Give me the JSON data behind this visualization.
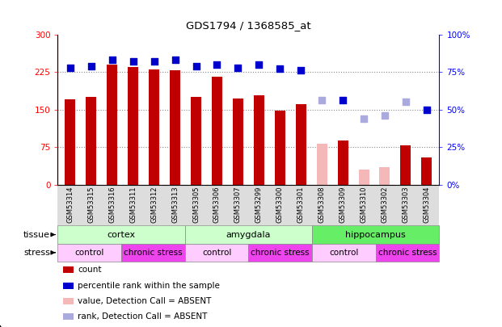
{
  "title": "GDS1794 / 1368585_at",
  "samples": [
    "GSM53314",
    "GSM53315",
    "GSM53316",
    "GSM53311",
    "GSM53312",
    "GSM53313",
    "GSM53305",
    "GSM53306",
    "GSM53307",
    "GSM53299",
    "GSM53300",
    "GSM53301",
    "GSM53308",
    "GSM53309",
    "GSM53310",
    "GSM53302",
    "GSM53303",
    "GSM53304"
  ],
  "counts": [
    170,
    175,
    240,
    235,
    230,
    228,
    175,
    215,
    172,
    178,
    148,
    160,
    null,
    88,
    null,
    null,
    78,
    55
  ],
  "counts_absent": [
    null,
    null,
    null,
    null,
    null,
    null,
    null,
    null,
    null,
    null,
    null,
    null,
    82,
    null,
    30,
    35,
    null,
    null
  ],
  "percentile_ranks": [
    78,
    79,
    83,
    82,
    82,
    83,
    79,
    80,
    78,
    80,
    77,
    76,
    null,
    56,
    null,
    null,
    null,
    50
  ],
  "percentile_ranks_absent": [
    null,
    null,
    null,
    null,
    null,
    null,
    null,
    null,
    null,
    null,
    null,
    null,
    56,
    null,
    44,
    46,
    55,
    null
  ],
  "bar_color_normal": "#c00000",
  "bar_color_absent": "#f4b8b8",
  "dot_color_normal": "#0000cc",
  "dot_color_absent": "#aaaadd",
  "ylim_left": [
    0,
    300
  ],
  "ylim_right": [
    0,
    100
  ],
  "yticks_left": [
    0,
    75,
    150,
    225,
    300
  ],
  "yticks_right": [
    0,
    25,
    50,
    75,
    100
  ],
  "ytick_labels_right": [
    "0%",
    "25%",
    "50%",
    "75%",
    "100%"
  ],
  "hlines": [
    75,
    150,
    225
  ],
  "tissue_groups": [
    {
      "label": "cortex",
      "start": 0,
      "end": 5,
      "color": "#ccffcc"
    },
    {
      "label": "amygdala",
      "start": 6,
      "end": 11,
      "color": "#ccffcc"
    },
    {
      "label": "hippocampus",
      "start": 12,
      "end": 17,
      "color": "#66ee66"
    }
  ],
  "stress_groups": [
    {
      "label": "control",
      "start": 0,
      "end": 2,
      "color": "#ffccff"
    },
    {
      "label": "chronic stress",
      "start": 3,
      "end": 5,
      "color": "#ee44ee"
    },
    {
      "label": "control",
      "start": 6,
      "end": 8,
      "color": "#ffccff"
    },
    {
      "label": "chronic stress",
      "start": 9,
      "end": 11,
      "color": "#ee44ee"
    },
    {
      "label": "control",
      "start": 12,
      "end": 14,
      "color": "#ffccff"
    },
    {
      "label": "chronic stress",
      "start": 15,
      "end": 17,
      "color": "#ee44ee"
    }
  ],
  "legend_items": [
    {
      "label": "count",
      "color": "#c00000"
    },
    {
      "label": "percentile rank within the sample",
      "color": "#0000cc"
    },
    {
      "label": "value, Detection Call = ABSENT",
      "color": "#f4b8b8"
    },
    {
      "label": "rank, Detection Call = ABSENT",
      "color": "#aaaadd"
    }
  ],
  "tissue_label": "tissue",
  "stress_label": "stress",
  "bg_color": "#ffffff",
  "bar_width": 0.5,
  "dot_size": 28,
  "chart_bg": "#ffffff"
}
